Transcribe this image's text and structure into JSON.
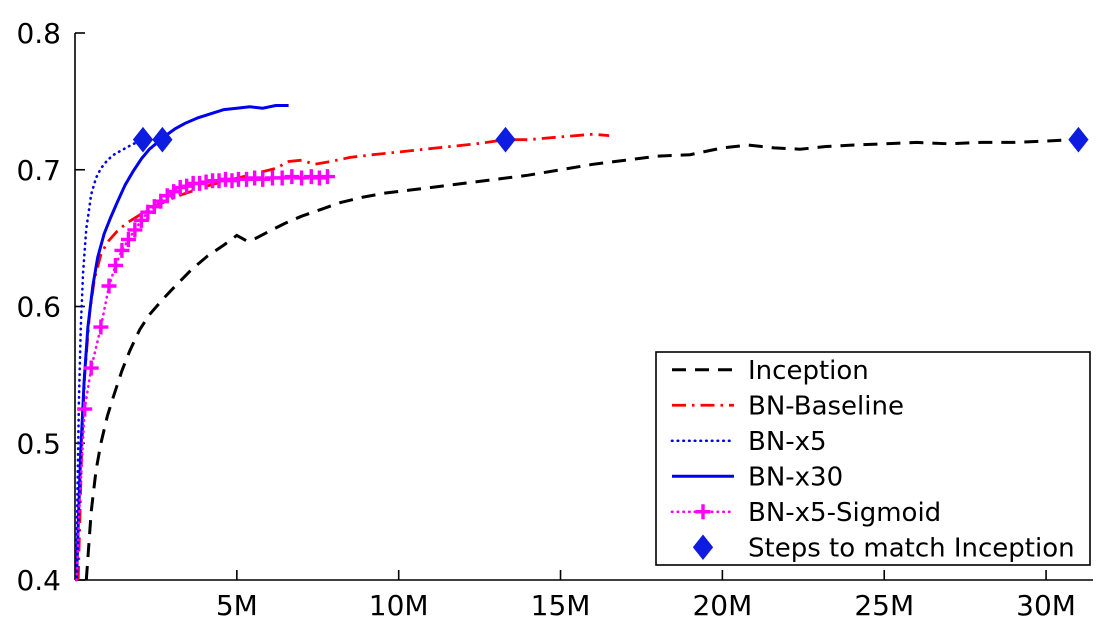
{
  "chart_data": {
    "type": "line",
    "title": "",
    "xlabel": "",
    "ylabel": "",
    "x_unit": "training steps (millions)",
    "xlim_millions": [
      0,
      31.45
    ],
    "ylim": [
      0.4,
      0.8
    ],
    "grid": false,
    "axis_color": "#000000",
    "background": "#ffffff",
    "legend": {
      "position": "bottom-right"
    },
    "x_ticks": [
      {
        "v": 5,
        "label": "5M"
      },
      {
        "v": 10,
        "label": "10M"
      },
      {
        "v": 15,
        "label": "15M"
      },
      {
        "v": 20,
        "label": "20M"
      },
      {
        "v": 25,
        "label": "25M"
      },
      {
        "v": 30,
        "label": "30M"
      }
    ],
    "y_ticks": [
      {
        "v": 0.4,
        "label": "0.4"
      },
      {
        "v": 0.5,
        "label": "0.5"
      },
      {
        "v": 0.6,
        "label": "0.6"
      },
      {
        "v": 0.7,
        "label": "0.7"
      },
      {
        "v": 0.8,
        "label": "0.8"
      }
    ],
    "series": [
      {
        "name": "Inception",
        "color": "#000000",
        "line_style": "dashed",
        "line_width": 3,
        "marker": "none",
        "x_millions": [
          0.35,
          0.5,
          0.65,
          0.8,
          1.0,
          1.2,
          1.45,
          1.7,
          2.0,
          2.3,
          2.7,
          3.1,
          3.6,
          4.1,
          4.6,
          5.0,
          5.3,
          5.6,
          6.0,
          6.5,
          7.0,
          7.6,
          8.2,
          8.9,
          9.6,
          10.3,
          11.0,
          12.0,
          13.0,
          14.0,
          15.0,
          16.0,
          17.0,
          18.0,
          19.0,
          20.0,
          20.8,
          21.6,
          22.4,
          23.2,
          24.0,
          25.0,
          26.0,
          27.0,
          28.0,
          29.0,
          30.0,
          30.8,
          31.3
        ],
        "y": [
          0.4,
          0.45,
          0.48,
          0.5,
          0.52,
          0.535,
          0.553,
          0.568,
          0.583,
          0.594,
          0.605,
          0.615,
          0.627,
          0.637,
          0.645,
          0.652,
          0.648,
          0.65,
          0.655,
          0.661,
          0.666,
          0.671,
          0.676,
          0.68,
          0.683,
          0.685,
          0.687,
          0.69,
          0.693,
          0.696,
          0.7,
          0.704,
          0.707,
          0.71,
          0.711,
          0.716,
          0.718,
          0.716,
          0.715,
          0.717,
          0.718,
          0.719,
          0.72,
          0.719,
          0.72,
          0.72,
          0.721,
          0.722,
          0.721
        ]
      },
      {
        "name": "BN-Baseline",
        "color": "#ff0000",
        "line_style": "dashdot",
        "line_width": 2.8,
        "marker": "none",
        "x_millions": [
          0.1,
          0.2,
          0.3,
          0.45,
          0.6,
          0.8,
          1.0,
          1.3,
          1.6,
          2.0,
          2.4,
          2.8,
          3.2,
          3.7,
          4.2,
          4.7,
          5.2,
          5.7,
          6.2,
          6.6,
          7.0,
          7.4,
          7.9,
          8.5,
          9.2,
          10.0,
          10.8,
          11.6,
          12.4,
          13.3,
          14.0,
          15.0,
          16.0,
          16.5
        ],
        "y": [
          0.4,
          0.49,
          0.55,
          0.595,
          0.62,
          0.638,
          0.647,
          0.655,
          0.661,
          0.667,
          0.672,
          0.677,
          0.681,
          0.685,
          0.689,
          0.692,
          0.695,
          0.698,
          0.701,
          0.706,
          0.707,
          0.704,
          0.706,
          0.709,
          0.711,
          0.713,
          0.715,
          0.717,
          0.719,
          0.722,
          0.722,
          0.724,
          0.726,
          0.725
        ]
      },
      {
        "name": "BN-x5",
        "color": "#0000ee",
        "line_style": "dotted",
        "line_width": 2.6,
        "marker": "none",
        "x_millions": [
          0.04,
          0.08,
          0.12,
          0.18,
          0.25,
          0.35,
          0.5,
          0.65,
          0.8,
          1.0,
          1.2,
          1.5,
          1.8,
          2.1
        ],
        "y": [
          0.4,
          0.47,
          0.53,
          0.585,
          0.625,
          0.657,
          0.682,
          0.694,
          0.701,
          0.707,
          0.711,
          0.715,
          0.719,
          0.721
        ]
      },
      {
        "name": "BN-x30",
        "color": "#0000ee",
        "line_style": "solid",
        "line_width": 3,
        "marker": "none",
        "x_millions": [
          0.05,
          0.1,
          0.18,
          0.28,
          0.4,
          0.55,
          0.7,
          0.9,
          1.1,
          1.3,
          1.55,
          1.8,
          2.05,
          2.3,
          2.55,
          2.8,
          3.1,
          3.4,
          3.8,
          4.2,
          4.6,
          5.0,
          5.4,
          5.8,
          6.2,
          6.6
        ],
        "y": [
          0.4,
          0.44,
          0.495,
          0.545,
          0.585,
          0.615,
          0.636,
          0.653,
          0.665,
          0.676,
          0.689,
          0.699,
          0.708,
          0.715,
          0.72,
          0.725,
          0.73,
          0.734,
          0.738,
          0.741,
          0.744,
          0.745,
          0.746,
          0.745,
          0.747,
          0.747
        ]
      },
      {
        "name": "BN-x5-Sigmoid",
        "color": "#ff00ff",
        "line_style": "dotted",
        "line_width": 2.6,
        "marker": "plus",
        "marker_from": 2,
        "x_millions": [
          0.05,
          0.15,
          0.3,
          0.5,
          0.8,
          1.05,
          1.25,
          1.45,
          1.65,
          1.85,
          2.05,
          2.25,
          2.45,
          2.65,
          2.85,
          3.05,
          3.25,
          3.45,
          3.65,
          3.85,
          4.05,
          4.25,
          4.45,
          4.65,
          4.85,
          5.05,
          5.3,
          5.55,
          5.8,
          6.1,
          6.4,
          6.7,
          7.0,
          7.3,
          7.55,
          7.8
        ],
        "y": [
          0.4,
          0.46,
          0.525,
          0.555,
          0.585,
          0.615,
          0.63,
          0.641,
          0.649,
          0.656,
          0.663,
          0.669,
          0.673,
          0.677,
          0.681,
          0.684,
          0.687,
          0.688,
          0.69,
          0.69,
          0.691,
          0.692,
          0.692,
          0.693,
          0.692,
          0.693,
          0.693,
          0.694,
          0.693,
          0.694,
          0.694,
          0.695,
          0.694,
          0.695,
          0.694,
          0.695
        ]
      },
      {
        "name": "Steps to match Inception",
        "color": "#0d1ce0",
        "line_style": "none",
        "line_width": 0,
        "marker": "diamond",
        "x_millions": [
          2.1,
          2.7,
          13.3,
          31.0
        ],
        "y": [
          0.722,
          0.722,
          0.722,
          0.722
        ]
      }
    ]
  }
}
